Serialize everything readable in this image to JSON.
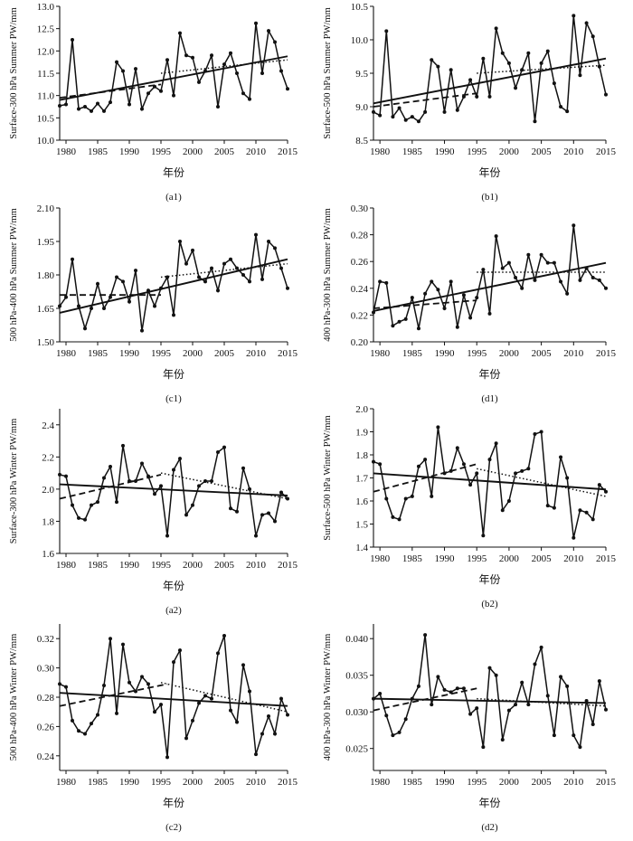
{
  "chart_data": [
    {
      "type": "line",
      "caption": "(a1)",
      "ylabel": "Surface-300 hPa Summer PW/mm",
      "xlabel": "年份",
      "xlim": [
        1979,
        2015
      ],
      "xticks": [
        1980,
        1985,
        1990,
        1995,
        2000,
        2005,
        2010,
        2015
      ],
      "ylim": [
        10.0,
        13.0
      ],
      "yticks": [
        "10.0",
        "10.5",
        "11.0",
        "11.5",
        "12.0",
        "12.5",
        "13.0"
      ],
      "x": [
        1979,
        1980,
        1981,
        1982,
        1983,
        1984,
        1985,
        1986,
        1987,
        1988,
        1989,
        1990,
        1991,
        1992,
        1993,
        1994,
        1995,
        1996,
        1997,
        1998,
        1999,
        2000,
        2001,
        2002,
        2003,
        2004,
        2005,
        2006,
        2007,
        2008,
        2009,
        2010,
        2011,
        2012,
        2013,
        2014,
        2015
      ],
      "values": [
        10.77,
        10.8,
        12.25,
        10.7,
        10.75,
        10.65,
        10.82,
        10.65,
        10.85,
        11.75,
        11.55,
        10.8,
        11.6,
        10.7,
        11.05,
        11.2,
        11.1,
        11.8,
        11.0,
        12.4,
        11.9,
        11.85,
        11.3,
        11.55,
        11.9,
        10.75,
        11.7,
        11.95,
        11.5,
        11.05,
        10.92,
        12.62,
        11.5,
        12.45,
        12.2,
        11.55,
        11.15
      ],
      "trend_all": [
        [
          1979,
          10.9
        ],
        [
          2015,
          11.88
        ]
      ],
      "trend_early": [
        [
          1979,
          10.95
        ],
        [
          1995,
          11.25
        ]
      ],
      "trend_late": [
        [
          1995,
          11.5
        ],
        [
          2015,
          11.8
        ]
      ]
    },
    {
      "type": "line",
      "caption": "(b1)",
      "ylabel": "Surface-500 hPa Summer PW/mm",
      "xlabel": "年份",
      "xlim": [
        1979,
        2015
      ],
      "xticks": [
        1980,
        1985,
        1990,
        1995,
        2000,
        2005,
        2010,
        2015
      ],
      "ylim": [
        8.5,
        10.5
      ],
      "yticks": [
        "8.5",
        "9.0",
        "9.5",
        "10.0",
        "10.5"
      ],
      "x": [
        1979,
        1980,
        1981,
        1982,
        1983,
        1984,
        1985,
        1986,
        1987,
        1988,
        1989,
        1990,
        1991,
        1992,
        1993,
        1994,
        1995,
        1996,
        1997,
        1998,
        1999,
        2000,
        2001,
        2002,
        2003,
        2004,
        2005,
        2006,
        2007,
        2008,
        2009,
        2010,
        2011,
        2012,
        2013,
        2014,
        2015
      ],
      "values": [
        8.92,
        8.87,
        10.13,
        8.85,
        8.98,
        8.8,
        8.85,
        8.78,
        8.92,
        9.7,
        9.6,
        8.92,
        9.55,
        8.95,
        9.15,
        9.4,
        9.15,
        9.72,
        9.15,
        10.17,
        9.8,
        9.65,
        9.28,
        9.55,
        9.8,
        8.78,
        9.65,
        9.83,
        9.35,
        9.0,
        8.93,
        10.36,
        9.47,
        10.25,
        10.05,
        9.6,
        9.18
      ],
      "trend_all": [
        [
          1979,
          9.05
        ],
        [
          2015,
          9.72
        ]
      ],
      "trend_early": [
        [
          1979,
          9.0
        ],
        [
          1995,
          9.2
        ]
      ],
      "trend_late": [
        [
          1995,
          9.5
        ],
        [
          2015,
          9.62
        ]
      ]
    },
    {
      "type": "line",
      "caption": "(c1)",
      "ylabel": "500 hPa-400 hPa Summer PW/mm",
      "xlabel": "年份",
      "xlim": [
        1979,
        2015
      ],
      "xticks": [
        1980,
        1985,
        1990,
        1995,
        2000,
        2005,
        2010,
        2015
      ],
      "ylim": [
        1.5,
        2.1
      ],
      "yticks": [
        "1.50",
        "1.65",
        "1.80",
        "1.95",
        "2.10"
      ],
      "x": [
        1979,
        1980,
        1981,
        1982,
        1983,
        1984,
        1985,
        1986,
        1987,
        1988,
        1989,
        1990,
        1991,
        1992,
        1993,
        1994,
        1995,
        1996,
        1997,
        1998,
        1999,
        2000,
        2001,
        2002,
        2003,
        2004,
        2005,
        2006,
        2007,
        2008,
        2009,
        2010,
        2011,
        2012,
        2013,
        2014,
        2015
      ],
      "values": [
        1.66,
        1.7,
        1.87,
        1.66,
        1.56,
        1.65,
        1.76,
        1.65,
        1.7,
        1.79,
        1.77,
        1.68,
        1.82,
        1.55,
        1.73,
        1.66,
        1.74,
        1.79,
        1.62,
        1.95,
        1.85,
        1.91,
        1.79,
        1.77,
        1.83,
        1.73,
        1.85,
        1.87,
        1.83,
        1.8,
        1.77,
        1.98,
        1.78,
        1.95,
        1.92,
        1.83,
        1.74
      ],
      "trend_all": [
        [
          1979,
          1.63
        ],
        [
          2015,
          1.87
        ]
      ],
      "trend_early": [
        [
          1979,
          1.71
        ],
        [
          1995,
          1.71
        ]
      ],
      "trend_late": [
        [
          1995,
          1.79
        ],
        [
          2015,
          1.85
        ]
      ]
    },
    {
      "type": "line",
      "caption": "(d1)",
      "ylabel": "400 hPa-300 hPa Summer PW/mm",
      "xlabel": "年份",
      "xlim": [
        1979,
        2015
      ],
      "xticks": [
        1980,
        1985,
        1990,
        1995,
        2000,
        2005,
        2010,
        2015
      ],
      "ylim": [
        0.2,
        0.3
      ],
      "yticks": [
        "0.20",
        "0.22",
        "0.24",
        "0.26",
        "0.28",
        "0.30"
      ],
      "x": [
        1979,
        1980,
        1981,
        1982,
        1983,
        1984,
        1985,
        1986,
        1987,
        1988,
        1989,
        1990,
        1991,
        1992,
        1993,
        1994,
        1995,
        1996,
        1997,
        1998,
        1999,
        2000,
        2001,
        2002,
        2003,
        2004,
        2005,
        2006,
        2007,
        2008,
        2009,
        2010,
        2011,
        2012,
        2013,
        2014,
        2015
      ],
      "values": [
        0.222,
        0.245,
        0.244,
        0.212,
        0.215,
        0.217,
        0.233,
        0.21,
        0.236,
        0.245,
        0.239,
        0.225,
        0.245,
        0.211,
        0.235,
        0.218,
        0.233,
        0.254,
        0.221,
        0.279,
        0.255,
        0.259,
        0.248,
        0.24,
        0.265,
        0.246,
        0.265,
        0.259,
        0.259,
        0.245,
        0.236,
        0.287,
        0.246,
        0.255,
        0.248,
        0.246,
        0.24
      ],
      "trend_all": [
        [
          1979,
          0.223
        ],
        [
          2015,
          0.259
        ]
      ],
      "trend_early": [
        [
          1979,
          0.225
        ],
        [
          1995,
          0.231
        ]
      ],
      "trend_late": [
        [
          1995,
          0.252
        ],
        [
          2015,
          0.252
        ]
      ]
    },
    {
      "type": "line",
      "caption": "(a2)",
      "ylabel": "Surface-300 hPa Winter PW/mm",
      "xlabel": "年份",
      "xlim": [
        1979,
        2015
      ],
      "xticks": [
        1980,
        1985,
        1990,
        1995,
        2000,
        2005,
        2010,
        2015
      ],
      "ylim": [
        1.6,
        2.5
      ],
      "yticks": [
        "1.6",
        "1.8",
        "2.0",
        "2.2",
        "2.4"
      ],
      "x": [
        1979,
        1980,
        1981,
        1982,
        1983,
        1984,
        1985,
        1986,
        1987,
        1988,
        1989,
        1990,
        1991,
        1992,
        1993,
        1994,
        1995,
        1996,
        1997,
        1998,
        1999,
        2000,
        2001,
        2002,
        2003,
        2004,
        2005,
        2006,
        2007,
        2008,
        2009,
        2010,
        2011,
        2012,
        2013,
        2014,
        2015
      ],
      "values": [
        2.09,
        2.08,
        1.9,
        1.82,
        1.81,
        1.9,
        1.92,
        2.07,
        2.14,
        1.92,
        2.27,
        2.05,
        2.05,
        2.16,
        2.08,
        1.97,
        2.02,
        1.71,
        2.12,
        2.19,
        1.84,
        1.9,
        2.02,
        2.05,
        2.05,
        2.23,
        2.26,
        1.88,
        1.86,
        2.13,
        2.0,
        1.71,
        1.84,
        1.85,
        1.8,
        1.98,
        1.94
      ],
      "trend_all": [
        [
          1979,
          2.03
        ],
        [
          2015,
          1.96
        ]
      ],
      "trend_early": [
        [
          1979,
          1.94
        ],
        [
          1995,
          2.09
        ]
      ],
      "trend_late": [
        [
          1995,
          2.1
        ],
        [
          2015,
          1.94
        ]
      ]
    },
    {
      "type": "line",
      "caption": "(b2)",
      "ylabel": "Surface-500 hPa Winter PW/mm",
      "xlabel": "年份",
      "xlim": [
        1979,
        2015
      ],
      "xticks": [
        1980,
        1985,
        1990,
        1995,
        2000,
        2005,
        2010,
        2015
      ],
      "ylim": [
        1.4,
        2.0
      ],
      "yticks": [
        "1.4",
        "1.5",
        "1.6",
        "1.7",
        "1.8",
        "1.9",
        "2.0"
      ],
      "x": [
        1979,
        1980,
        1981,
        1982,
        1983,
        1984,
        1985,
        1986,
        1987,
        1988,
        1989,
        1990,
        1991,
        1992,
        1993,
        1994,
        1995,
        1996,
        1997,
        1998,
        1999,
        2000,
        2001,
        2002,
        2003,
        2004,
        2005,
        2006,
        2007,
        2008,
        2009,
        2010,
        2011,
        2012,
        2013,
        2014,
        2015
      ],
      "values": [
        1.77,
        1.76,
        1.61,
        1.53,
        1.52,
        1.61,
        1.62,
        1.75,
        1.78,
        1.62,
        1.92,
        1.72,
        1.73,
        1.83,
        1.76,
        1.67,
        1.72,
        1.45,
        1.78,
        1.85,
        1.56,
        1.6,
        1.72,
        1.73,
        1.74,
        1.89,
        1.9,
        1.58,
        1.57,
        1.79,
        1.7,
        1.44,
        1.56,
        1.55,
        1.52,
        1.67,
        1.64
      ],
      "trend_all": [
        [
          1979,
          1.72
        ],
        [
          2015,
          1.65
        ]
      ],
      "trend_early": [
        [
          1979,
          1.64
        ],
        [
          1995,
          1.76
        ]
      ],
      "trend_late": [
        [
          1995,
          1.74
        ],
        [
          2015,
          1.62
        ]
      ]
    },
    {
      "type": "line",
      "caption": "(c2)",
      "ylabel": "500 hPa-400 hPa Winter PW/mm",
      "xlabel": "年份",
      "xlim": [
        1979,
        2015
      ],
      "xticks": [
        1980,
        1985,
        1990,
        1995,
        2000,
        2005,
        2010,
        2015
      ],
      "ylim": [
        0.23,
        0.33
      ],
      "yticks": [
        "0.24",
        "0.26",
        "0.28",
        "0.30",
        "0.32"
      ],
      "x": [
        1979,
        1980,
        1981,
        1982,
        1983,
        1984,
        1985,
        1986,
        1987,
        1988,
        1989,
        1990,
        1991,
        1992,
        1993,
        1994,
        1995,
        1996,
        1997,
        1998,
        1999,
        2000,
        2001,
        2002,
        2003,
        2004,
        2005,
        2006,
        2007,
        2008,
        2009,
        2010,
        2011,
        2012,
        2013,
        2014,
        2015
      ],
      "values": [
        0.289,
        0.287,
        0.264,
        0.257,
        0.255,
        0.262,
        0.268,
        0.288,
        0.32,
        0.269,
        0.316,
        0.29,
        0.284,
        0.294,
        0.289,
        0.27,
        0.275,
        0.239,
        0.304,
        0.312,
        0.252,
        0.264,
        0.276,
        0.281,
        0.279,
        0.31,
        0.322,
        0.271,
        0.263,
        0.302,
        0.284,
        0.241,
        0.255,
        0.267,
        0.255,
        0.279,
        0.268
      ],
      "trend_all": [
        [
          1979,
          0.283
        ],
        [
          2015,
          0.274
        ]
      ],
      "trend_early": [
        [
          1979,
          0.274
        ],
        [
          1996,
          0.289
        ]
      ],
      "trend_late": [
        [
          1995,
          0.29
        ],
        [
          2015,
          0.27
        ]
      ]
    },
    {
      "type": "line",
      "caption": "(d2)",
      "ylabel": "400 hPa-300 hPa Winter PW/mm",
      "xlabel": "年份",
      "xlim": [
        1979,
        2015
      ],
      "xticks": [
        1980,
        1985,
        1990,
        1995,
        2000,
        2005,
        2010,
        2015
      ],
      "ylim": [
        0.022,
        0.042
      ],
      "yticks": [
        "0.025",
        "0.030",
        "0.035",
        "0.040"
      ],
      "x": [
        1979,
        1980,
        1981,
        1982,
        1983,
        1984,
        1985,
        1986,
        1987,
        1988,
        1989,
        1990,
        1991,
        1992,
        1993,
        1994,
        1995,
        1996,
        1997,
        1998,
        1999,
        2000,
        2001,
        2002,
        2003,
        2004,
        2005,
        2006,
        2007,
        2008,
        2009,
        2010,
        2011,
        2012,
        2013,
        2014,
        2015
      ],
      "values": [
        0.0318,
        0.0325,
        0.0295,
        0.0268,
        0.0272,
        0.029,
        0.0318,
        0.0335,
        0.0405,
        0.031,
        0.0348,
        0.033,
        0.0327,
        0.0332,
        0.0332,
        0.0297,
        0.0305,
        0.0252,
        0.036,
        0.035,
        0.0262,
        0.0302,
        0.031,
        0.034,
        0.031,
        0.0365,
        0.0388,
        0.0322,
        0.0268,
        0.0348,
        0.0335,
        0.0268,
        0.0252,
        0.0315,
        0.0283,
        0.0342,
        0.0303
      ],
      "trend_all": [
        [
          1979,
          0.0318
        ],
        [
          2015,
          0.0312
        ]
      ],
      "trend_early": [
        [
          1979,
          0.0302
        ],
        [
          1995,
          0.0332
        ]
      ],
      "trend_late": [
        [
          1995,
          0.0318
        ],
        [
          2015,
          0.0308
        ]
      ]
    }
  ]
}
